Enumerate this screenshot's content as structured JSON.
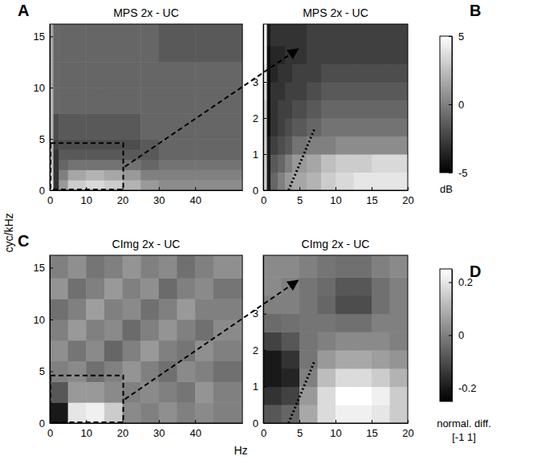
{
  "xlabel": "Hz",
  "ylabel": "cyc/kHz",
  "chart_data": [
    {
      "type": "heatmap",
      "panel": "A",
      "title": "MPS 2x - UC",
      "xlim": [
        0,
        53
      ],
      "ylim": [
        0,
        16.2
      ],
      "xticks": [
        0,
        10,
        20,
        30,
        40
      ],
      "yticks": [
        0,
        5,
        10,
        15
      ],
      "x_edges": [
        0,
        1,
        2.5,
        5,
        10,
        15,
        20,
        25,
        30,
        40,
        53
      ],
      "y_edges": [
        0,
        1,
        2,
        3,
        4,
        5,
        7.5,
        10,
        12.5,
        16.2
      ],
      "cells": [
        [
          4,
          -3,
          1,
          3,
          3.5,
          3,
          2,
          1,
          0.5,
          0.5
        ],
        [
          3,
          -3,
          0,
          1.5,
          2,
          1.5,
          1,
          0,
          0,
          0
        ],
        [
          2.5,
          -3,
          -1,
          -0.5,
          -0.5,
          -0.5,
          -0.5,
          -1,
          -0.5,
          -0.5
        ],
        [
          2,
          -3,
          -1.5,
          -1.5,
          -1.5,
          -1.5,
          -1.5,
          -1.5,
          -1,
          -1
        ],
        [
          2,
          -2.5,
          -2,
          -2,
          -2,
          -2,
          -2,
          -1.5,
          -1,
          -1
        ],
        [
          2,
          -2,
          -1.5,
          -1.5,
          -1.5,
          -1.5,
          -1.5,
          -1,
          -1,
          -1
        ],
        [
          2,
          -1,
          -1,
          -1,
          -1,
          -1,
          -1,
          -1,
          -1,
          -1
        ],
        [
          1.5,
          -1,
          -1,
          -1,
          -1,
          -1,
          -1,
          -1,
          -1,
          -1
        ],
        [
          1.5,
          -1,
          -1,
          -1,
          -1,
          -1,
          -1,
          -1,
          -1.5,
          -1.5
        ]
      ]
    },
    {
      "type": "heatmap",
      "panel": "B",
      "title": "MPS 2x - UC",
      "xlim": [
        0,
        20
      ],
      "ylim": [
        0,
        4.6
      ],
      "xticks": [
        0,
        5,
        10,
        15,
        20
      ],
      "yticks": [
        0,
        1,
        2,
        3
      ],
      "x_edges": [
        0,
        0.5,
        1,
        2,
        3,
        4,
        6,
        8,
        10,
        12.5,
        15,
        17.5,
        20
      ],
      "y_edges": [
        0,
        0.5,
        1,
        1.5,
        2,
        2.5,
        3,
        3.5,
        4,
        4.6
      ],
      "cells": [
        [
          3,
          -4,
          -1,
          0,
          1,
          1.5,
          2,
          3,
          3.5,
          4,
          4,
          4
        ],
        [
          3,
          -4,
          -1.5,
          -1,
          0,
          1,
          1.5,
          2.5,
          3,
          3,
          3.5,
          3.5
        ],
        [
          3,
          -4,
          -2.5,
          -2,
          -1.5,
          -0.5,
          0,
          0,
          0.5,
          0.5,
          0.5,
          0.5
        ],
        [
          3,
          -4.5,
          -3,
          -2.5,
          -2,
          -1.5,
          -1,
          -0.5,
          -0.5,
          -0.5,
          -0.5,
          -0.5
        ],
        [
          3,
          -4.5,
          -3,
          -2.5,
          -2.5,
          -2,
          -1.5,
          -1,
          -1,
          -1,
          -1,
          -1
        ],
        [
          3.5,
          -4.5,
          -3,
          -3,
          -2.5,
          -2.5,
          -2,
          -1.5,
          -1.5,
          -1.5,
          -1.5,
          -1.5
        ],
        [
          4,
          -4.5,
          -3.5,
          -3,
          -3,
          -2.5,
          -2.5,
          -2,
          -2,
          -2,
          -2,
          -2
        ],
        [
          4.5,
          -4.5,
          -3.5,
          -3.5,
          -3,
          -3,
          -2.5,
          -2.5,
          -2.5,
          -2.5,
          -2.5,
          -2.5
        ],
        [
          4.5,
          -4,
          -3,
          -3,
          -3,
          -3,
          -2.5,
          -2.5,
          -2.5,
          -2.5,
          -2.5,
          -2.5
        ]
      ],
      "colorbar": {
        "range": [
          -5,
          5
        ],
        "ticks": [
          5,
          0,
          -5
        ],
        "label": [
          "dB"
        ]
      }
    },
    {
      "type": "heatmap",
      "panel": "C",
      "title": "CImg 2x - UC",
      "xlim": [
        0,
        53
      ],
      "ylim": [
        0,
        16.2
      ],
      "xticks": [
        0,
        10,
        20,
        30,
        40
      ],
      "yticks": [
        0,
        5,
        10,
        15
      ],
      "x_edges": [
        0,
        5,
        10,
        15,
        20,
        25,
        30,
        35,
        40,
        45,
        53
      ],
      "y_edges": [
        0,
        2,
        4,
        6,
        8,
        10,
        12,
        14,
        16.2
      ],
      "cells": [
        [
          -0.2,
          0.2,
          0.22,
          0.15,
          0.02,
          0,
          0.03,
          0,
          0.02,
          0
        ],
        [
          -0.08,
          0.05,
          0.05,
          0.02,
          0,
          0.02,
          0,
          -0.02,
          0.04,
          0
        ],
        [
          0,
          0.02,
          -0.03,
          0,
          0.04,
          0,
          -0.03,
          0.02,
          0,
          -0.03
        ],
        [
          0.03,
          -0.02,
          0.02,
          -0.05,
          0,
          0.05,
          0,
          -0.02,
          0.03,
          0
        ],
        [
          0,
          0.05,
          0,
          0.02,
          -0.04,
          0,
          0.04,
          0,
          -0.03,
          0.02
        ],
        [
          -0.03,
          0,
          0.06,
          0,
          0.02,
          -0.03,
          0,
          0.05,
          0,
          0
        ],
        [
          0.04,
          -0.03,
          0,
          0.05,
          0,
          0.03,
          -0.04,
          0,
          0.02,
          -0.02
        ],
        [
          0,
          0.03,
          -0.02,
          0,
          0.04,
          0,
          0.02,
          -0.03,
          0,
          0.03
        ]
      ]
    },
    {
      "type": "heatmap",
      "panel": "D",
      "title": "CImg 2x - UC",
      "xlim": [
        0,
        20
      ],
      "ylim": [
        0,
        4.6
      ],
      "xticks": [
        0,
        5,
        10,
        15,
        20
      ],
      "yticks": [
        0,
        1,
        2,
        3
      ],
      "x_edges": [
        0,
        2.5,
        5,
        7.5,
        10,
        12.5,
        15,
        17.5,
        20
      ],
      "y_edges": [
        0,
        0.5,
        1,
        1.5,
        2,
        2.5,
        3,
        3.5,
        4,
        4.6
      ],
      "cells": [
        [
          -0.08,
          -0.05,
          0.08,
          0.18,
          0.22,
          0.22,
          0.2,
          0.15
        ],
        [
          -0.15,
          -0.12,
          0.05,
          0.18,
          0.25,
          0.25,
          0.22,
          0.15
        ],
        [
          -0.2,
          -0.18,
          0,
          0.12,
          0.18,
          0.18,
          0.15,
          0.1
        ],
        [
          -0.2,
          -0.15,
          -0.02,
          0.05,
          0.08,
          0.08,
          0.06,
          0.04
        ],
        [
          -0.12,
          -0.08,
          -0.02,
          0,
          0.02,
          0.02,
          0.02,
          0
        ],
        [
          -0.04,
          -0.03,
          -0.02,
          -0.02,
          -0.03,
          -0.03,
          0,
          0
        ],
        [
          0,
          0,
          -0.02,
          -0.05,
          -0.1,
          -0.1,
          -0.03,
          0
        ],
        [
          0.02,
          0,
          -0.02,
          -0.04,
          -0.08,
          -0.08,
          -0.03,
          0
        ],
        [
          0.02,
          0.02,
          0,
          -0.02,
          -0.03,
          -0.03,
          0,
          0.02
        ]
      ],
      "colorbar": {
        "range": [
          -0.25,
          0.25
        ],
        "ticks": [
          0.2,
          0,
          -0.2
        ],
        "label": [
          "normal. diff.",
          "[-1 1]"
        ]
      }
    }
  ]
}
